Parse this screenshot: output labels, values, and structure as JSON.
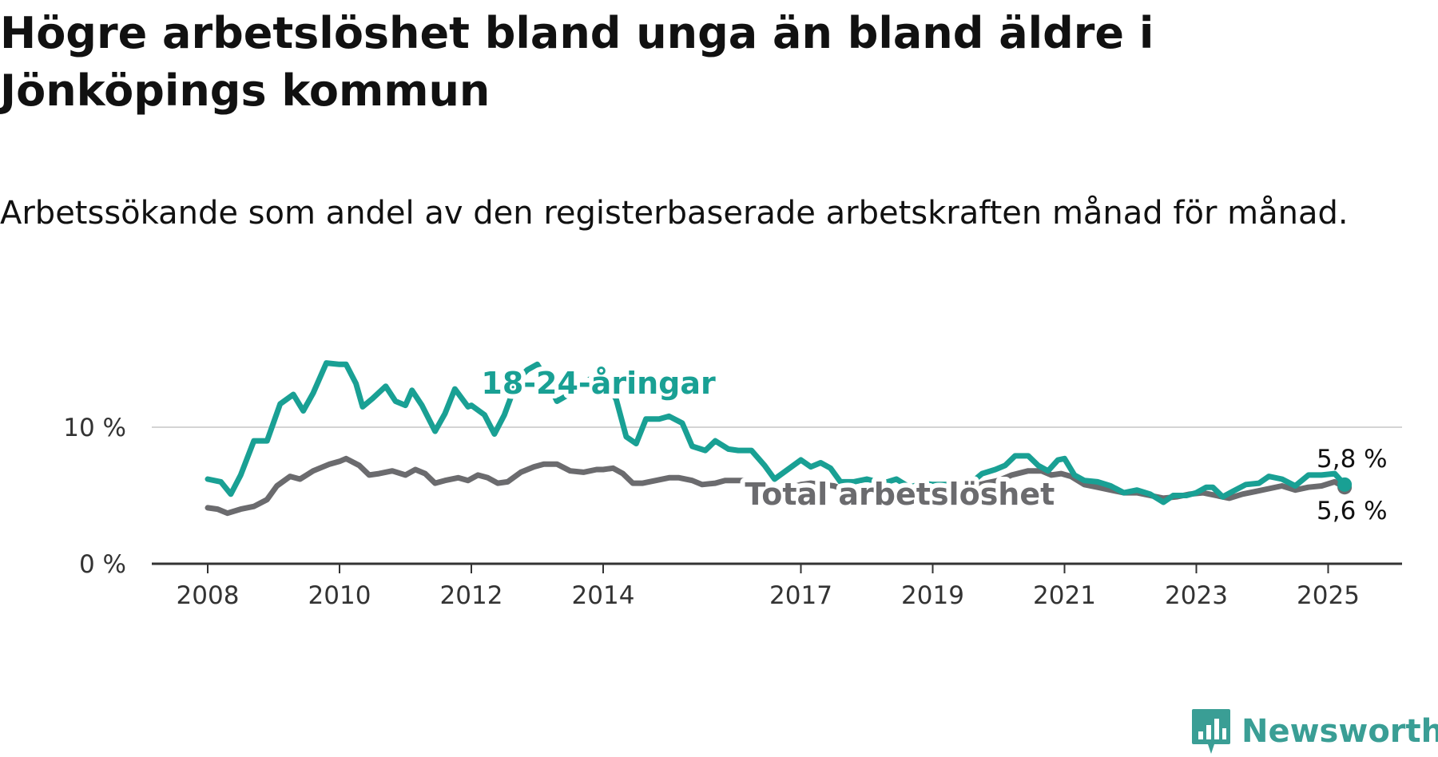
{
  "title": "Högre arbetslöshet bland unga än bland äldre i Jönköpings kommun",
  "subtitle": "Arbetssökande som andel av den registerbaserade arbetskraften månad för månad.",
  "logo": {
    "text": "Newsworthy",
    "icon": "newsworthy-bar-chart-icon",
    "color": "#3a9e95"
  },
  "chart_data": {
    "type": "line",
    "ylim": [
      0,
      15
    ],
    "xlim": [
      2008,
      2026.1
    ],
    "y_ticks": [
      {
        "value": 0,
        "label": "0 %"
      },
      {
        "value": 10,
        "label": "10 %"
      }
    ],
    "x_ticks": [
      {
        "value": 2008,
        "label": "2008"
      },
      {
        "value": 2010,
        "label": "2010"
      },
      {
        "value": 2012,
        "label": "2012"
      },
      {
        "value": 2014,
        "label": "2014"
      },
      {
        "value": 2017,
        "label": "2017"
      },
      {
        "value": 2019,
        "label": "2019"
      },
      {
        "value": 2021,
        "label": "2021"
      },
      {
        "value": 2023,
        "label": "2023"
      },
      {
        "value": 2025,
        "label": "2025"
      }
    ],
    "grid": "horizontal",
    "series": [
      {
        "name": "18-24-åringar",
        "color": "#19a094",
        "end_label": "5,8 %",
        "points": [
          [
            2008.0,
            6.2
          ],
          [
            2008.2,
            6.0
          ],
          [
            2008.35,
            5.1
          ],
          [
            2008.5,
            6.5
          ],
          [
            2008.7,
            9.0
          ],
          [
            2008.9,
            9.0
          ],
          [
            2009.1,
            11.7
          ],
          [
            2009.3,
            12.4
          ],
          [
            2009.45,
            11.2
          ],
          [
            2009.6,
            12.5
          ],
          [
            2009.8,
            14.7
          ],
          [
            2010.0,
            14.6
          ],
          [
            2010.1,
            14.6
          ],
          [
            2010.25,
            13.2
          ],
          [
            2010.35,
            11.5
          ],
          [
            2010.5,
            12.1
          ],
          [
            2010.7,
            13.0
          ],
          [
            2010.85,
            11.9
          ],
          [
            2011.0,
            11.6
          ],
          [
            2011.1,
            12.7
          ],
          [
            2011.25,
            11.6
          ],
          [
            2011.45,
            9.7
          ],
          [
            2011.6,
            11.0
          ],
          [
            2011.75,
            12.8
          ],
          [
            2011.95,
            11.5
          ],
          [
            2012.0,
            11.6
          ],
          [
            2012.2,
            10.9
          ],
          [
            2012.35,
            9.5
          ],
          [
            2012.5,
            10.9
          ],
          [
            2012.7,
            13.5
          ],
          [
            2012.85,
            14.2
          ],
          [
            2013.0,
            14.6
          ],
          [
            2013.15,
            13.4
          ],
          [
            2013.3,
            11.9
          ],
          [
            2013.55,
            12.6
          ],
          [
            2013.85,
            13.7
          ],
          [
            2014.0,
            13.9
          ],
          [
            2014.2,
            12.0
          ],
          [
            2014.35,
            9.3
          ],
          [
            2014.5,
            8.8
          ],
          [
            2014.65,
            10.6
          ],
          [
            2014.85,
            10.6
          ],
          [
            2015.0,
            10.8
          ],
          [
            2015.2,
            10.3
          ],
          [
            2015.35,
            8.6
          ],
          [
            2015.55,
            8.3
          ],
          [
            2015.7,
            9.0
          ],
          [
            2015.9,
            8.4
          ],
          [
            2016.05,
            8.3
          ],
          [
            2016.25,
            8.3
          ],
          [
            2016.45,
            7.2
          ],
          [
            2016.6,
            6.2
          ],
          [
            2016.8,
            6.9
          ],
          [
            2017.0,
            7.6
          ],
          [
            2017.15,
            7.1
          ],
          [
            2017.3,
            7.4
          ],
          [
            2017.45,
            7.0
          ],
          [
            2017.6,
            6.0
          ],
          [
            2017.8,
            6.0
          ],
          [
            2018.0,
            6.2
          ],
          [
            2018.25,
            5.9
          ],
          [
            2018.45,
            6.2
          ],
          [
            2018.65,
            5.6
          ],
          [
            2018.85,
            5.9
          ],
          [
            2019.0,
            5.8
          ],
          [
            2019.25,
            5.8
          ],
          [
            2019.45,
            5.6
          ],
          [
            2019.6,
            6.0
          ],
          [
            2019.75,
            6.6
          ],
          [
            2019.95,
            6.9
          ],
          [
            2020.1,
            7.2
          ],
          [
            2020.25,
            7.9
          ],
          [
            2020.45,
            7.9
          ],
          [
            2020.6,
            7.2
          ],
          [
            2020.75,
            6.8
          ],
          [
            2020.9,
            7.6
          ],
          [
            2021.0,
            7.7
          ],
          [
            2021.15,
            6.5
          ],
          [
            2021.3,
            6.1
          ],
          [
            2021.5,
            6.0
          ],
          [
            2021.7,
            5.7
          ],
          [
            2021.9,
            5.2
          ],
          [
            2022.1,
            5.4
          ],
          [
            2022.3,
            5.1
          ],
          [
            2022.5,
            4.5
          ],
          [
            2022.65,
            5.0
          ],
          [
            2022.85,
            5.0
          ],
          [
            2023.0,
            5.2
          ],
          [
            2023.15,
            5.6
          ],
          [
            2023.25,
            5.6
          ],
          [
            2023.4,
            4.9
          ],
          [
            2023.55,
            5.3
          ],
          [
            2023.75,
            5.8
          ],
          [
            2023.95,
            5.9
          ],
          [
            2024.1,
            6.4
          ],
          [
            2024.3,
            6.2
          ],
          [
            2024.5,
            5.7
          ],
          [
            2024.7,
            6.5
          ],
          [
            2024.9,
            6.5
          ],
          [
            2025.1,
            6.6
          ],
          [
            2025.25,
            5.8
          ]
        ]
      },
      {
        "name": "Total arbetslöshet",
        "color": "#6b6b6e",
        "end_label": "5,6 %",
        "points": [
          [
            2008.0,
            4.1
          ],
          [
            2008.15,
            4.0
          ],
          [
            2008.3,
            3.7
          ],
          [
            2008.5,
            4.0
          ],
          [
            2008.7,
            4.2
          ],
          [
            2008.9,
            4.7
          ],
          [
            2009.05,
            5.7
          ],
          [
            2009.25,
            6.4
          ],
          [
            2009.4,
            6.2
          ],
          [
            2009.6,
            6.8
          ],
          [
            2009.85,
            7.3
          ],
          [
            2010.0,
            7.5
          ],
          [
            2010.1,
            7.7
          ],
          [
            2010.3,
            7.2
          ],
          [
            2010.45,
            6.5
          ],
          [
            2010.6,
            6.6
          ],
          [
            2010.8,
            6.8
          ],
          [
            2011.0,
            6.5
          ],
          [
            2011.15,
            6.9
          ],
          [
            2011.3,
            6.6
          ],
          [
            2011.45,
            5.9
          ],
          [
            2011.6,
            6.1
          ],
          [
            2011.8,
            6.3
          ],
          [
            2011.95,
            6.1
          ],
          [
            2012.1,
            6.5
          ],
          [
            2012.25,
            6.3
          ],
          [
            2012.4,
            5.9
          ],
          [
            2012.55,
            6.0
          ],
          [
            2012.75,
            6.7
          ],
          [
            2012.95,
            7.1
          ],
          [
            2013.1,
            7.3
          ],
          [
            2013.3,
            7.3
          ],
          [
            2013.5,
            6.8
          ],
          [
            2013.7,
            6.7
          ],
          [
            2013.9,
            6.9
          ],
          [
            2014.0,
            6.9
          ],
          [
            2014.15,
            7.0
          ],
          [
            2014.3,
            6.6
          ],
          [
            2014.45,
            5.9
          ],
          [
            2014.6,
            5.9
          ],
          [
            2014.8,
            6.1
          ],
          [
            2015.0,
            6.3
          ],
          [
            2015.15,
            6.3
          ],
          [
            2015.35,
            6.1
          ],
          [
            2015.5,
            5.8
          ],
          [
            2015.7,
            5.9
          ],
          [
            2015.85,
            6.1
          ],
          [
            2016.0,
            6.1
          ],
          [
            2016.3,
            6.1
          ],
          [
            2016.45,
            5.5
          ],
          [
            2016.6,
            5.3
          ],
          [
            2016.8,
            5.5
          ],
          [
            2017.0,
            5.8
          ],
          [
            2017.15,
            5.9
          ],
          [
            2017.5,
            5.7
          ],
          [
            2017.75,
            5.3
          ],
          [
            2018.0,
            5.4
          ],
          [
            2018.3,
            5.4
          ],
          [
            2018.6,
            5.1
          ],
          [
            2018.85,
            5.0
          ],
          [
            2019.0,
            5.2
          ],
          [
            2019.3,
            5.4
          ],
          [
            2019.55,
            5.6
          ],
          [
            2019.8,
            5.9
          ],
          [
            2020.0,
            6.1
          ],
          [
            2020.2,
            6.5
          ],
          [
            2020.45,
            6.8
          ],
          [
            2020.65,
            6.8
          ],
          [
            2020.8,
            6.5
          ],
          [
            2020.95,
            6.6
          ],
          [
            2021.1,
            6.4
          ],
          [
            2021.3,
            5.8
          ],
          [
            2021.5,
            5.6
          ],
          [
            2021.7,
            5.4
          ],
          [
            2021.9,
            5.2
          ],
          [
            2022.1,
            5.2
          ],
          [
            2022.3,
            5.0
          ],
          [
            2022.5,
            4.8
          ],
          [
            2022.7,
            4.9
          ],
          [
            2022.9,
            5.1
          ],
          [
            2023.1,
            5.2
          ],
          [
            2023.3,
            5.0
          ],
          [
            2023.5,
            4.8
          ],
          [
            2023.7,
            5.1
          ],
          [
            2023.9,
            5.3
          ],
          [
            2024.1,
            5.5
          ],
          [
            2024.3,
            5.7
          ],
          [
            2024.5,
            5.4
          ],
          [
            2024.7,
            5.6
          ],
          [
            2024.9,
            5.7
          ],
          [
            2025.1,
            6.0
          ],
          [
            2025.25,
            5.6
          ]
        ]
      }
    ]
  }
}
